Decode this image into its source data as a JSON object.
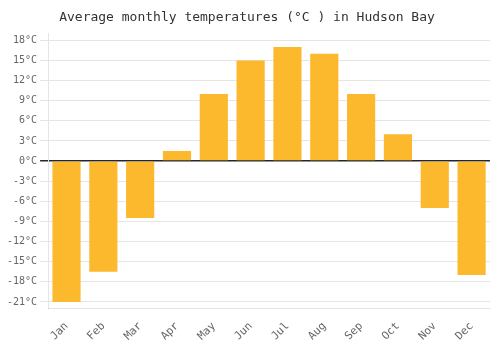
{
  "chart_data": {
    "type": "bar",
    "title": "Average monthly temperatures (°C ) in Hudson Bay",
    "categories": [
      "Jan",
      "Feb",
      "Mar",
      "Apr",
      "May",
      "Jun",
      "Jul",
      "Aug",
      "Sep",
      "Oct",
      "Nov",
      "Dec"
    ],
    "values": [
      -21,
      -16.5,
      -8.5,
      1.5,
      10,
      15,
      17,
      16,
      10,
      4,
      -7,
      -17
    ],
    "color": "#FDB92E",
    "ylim": [
      -22,
      19
    ],
    "yticks": [
      {
        "value": -21,
        "label": "-21°C"
      },
      {
        "value": -18,
        "label": "-18°C"
      },
      {
        "value": -15,
        "label": "-15°C"
      },
      {
        "value": -12,
        "label": "-12°C"
      },
      {
        "value": -9,
        "label": "-9°C"
      },
      {
        "value": -6,
        "label": "-6°C"
      },
      {
        "value": -3,
        "label": "-3°C"
      },
      {
        "value": 0,
        "label": "0°C"
      },
      {
        "value": 3,
        "label": "3°C"
      },
      {
        "value": 6,
        "label": "6°C"
      },
      {
        "value": 9,
        "label": "9°C"
      },
      {
        "value": 12,
        "label": "12°C"
      },
      {
        "value": 15,
        "label": "15°C"
      },
      {
        "value": 18,
        "label": "18°C"
      }
    ],
    "grid": true
  }
}
